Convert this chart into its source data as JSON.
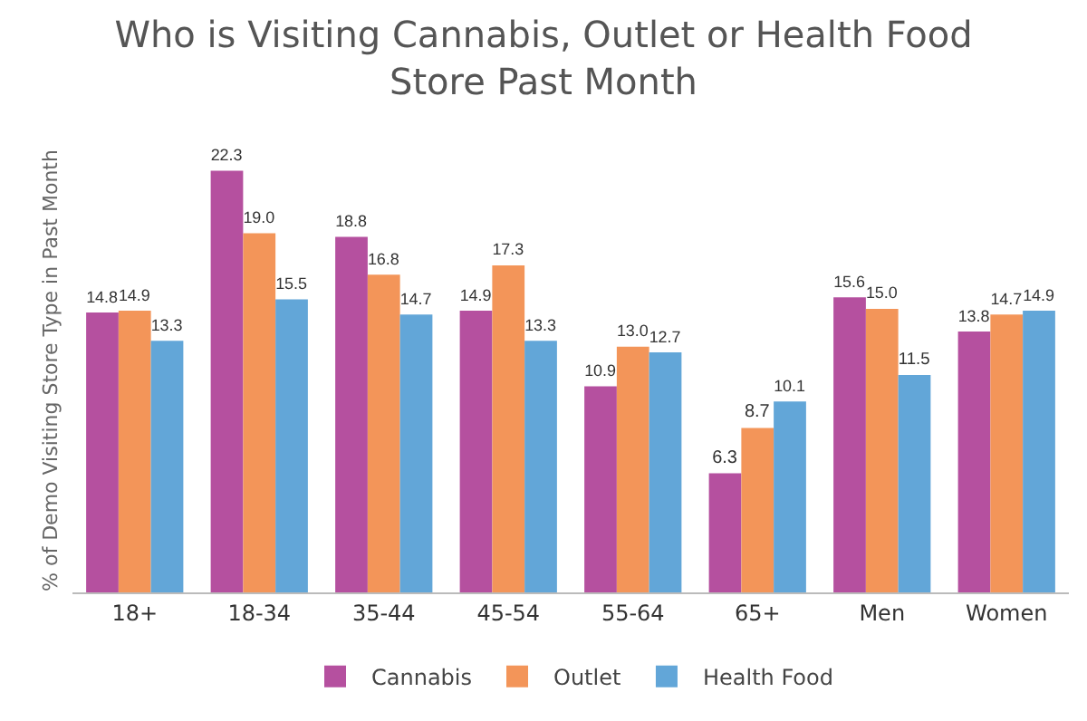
{
  "chart_data": {
    "type": "bar",
    "title": "Who is Visiting Cannabis, Outlet or Health Food Store Past Month",
    "ylabel": "% of Demo Visiting Store Type in Past Month",
    "categories": [
      "18+",
      "18-34",
      "35-44",
      "45-54",
      "55-64",
      "65+",
      "Men",
      "Women"
    ],
    "series": [
      {
        "name": "Cannabis",
        "color": "#b5509f",
        "values": [
          14.8,
          22.3,
          18.8,
          14.9,
          10.9,
          6.3,
          15.6,
          13.8
        ],
        "value_labels": [
          "14.8",
          "22.3",
          "18.8",
          "14.9",
          "10.9",
          "6.3",
          "15.6",
          "13.8"
        ]
      },
      {
        "name": "Outlet",
        "color": "#f39559",
        "values": [
          14.9,
          19.0,
          16.8,
          17.3,
          13.0,
          8.7,
          15.0,
          14.7
        ],
        "value_labels": [
          "14.9",
          "19.0",
          "16.8",
          "17.3",
          "13.0",
          "8.7",
          "15.0",
          "14.7"
        ]
      },
      {
        "name": "Health Food",
        "color": "#62a6d8",
        "values": [
          13.3,
          15.5,
          14.7,
          13.3,
          12.7,
          10.1,
          11.5,
          14.9
        ],
        "value_labels": [
          "13.3",
          "15.5",
          "14.7",
          "13.3",
          "12.7",
          "10.1",
          "11.5",
          "14.9"
        ]
      }
    ],
    "legend": "bottom",
    "grid": false
  }
}
